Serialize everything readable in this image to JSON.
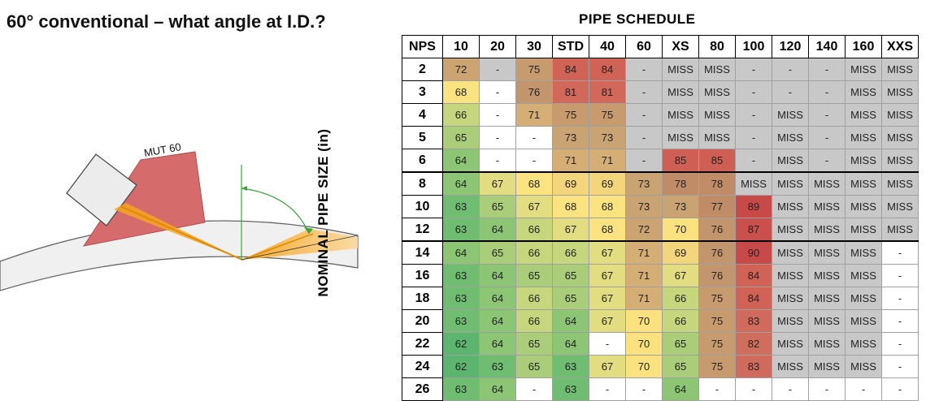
{
  "title": "60° conventional – what angle at I.D.?",
  "probe_label": "MUT 60",
  "schedule_title": "PIPE SCHEDULE",
  "y_axis_label": "NOMINAL PIPE SIZE (in)",
  "corner_header": "NPS",
  "columns": [
    "10",
    "20",
    "30",
    "STD",
    "40",
    "60",
    "XS",
    "80",
    "100",
    "120",
    "140",
    "160",
    "XXS"
  ],
  "rows": [
    {
      "nps": "2",
      "cells": [
        "72",
        "-",
        "75",
        "84",
        "84",
        "-",
        "MISS",
        "MISS",
        "-",
        "-",
        "-",
        "MISS",
        "MISS"
      ]
    },
    {
      "nps": "3",
      "cells": [
        "68",
        "-",
        "76",
        "81",
        "81",
        "-",
        "MISS",
        "MISS",
        "-",
        "-",
        "-",
        "MISS",
        "MISS"
      ]
    },
    {
      "nps": "4",
      "cells": [
        "66",
        "-",
        "71",
        "75",
        "75",
        "-",
        "MISS",
        "MISS",
        "-",
        "MISS",
        "-",
        "MISS",
        "MISS"
      ]
    },
    {
      "nps": "5",
      "cells": [
        "65",
        "-",
        "-",
        "73",
        "73",
        "-",
        "MISS",
        "MISS",
        "-",
        "MISS",
        "-",
        "MISS",
        "MISS"
      ]
    },
    {
      "nps": "6",
      "cells": [
        "64",
        "-",
        "-",
        "71",
        "71",
        "-",
        "85",
        "85",
        "-",
        "MISS",
        "-",
        "MISS",
        "MISS"
      ]
    },
    {
      "nps": "8",
      "cells": [
        "64",
        "67",
        "68",
        "69",
        "69",
        "73",
        "78",
        "78",
        "MISS",
        "MISS",
        "MISS",
        "MISS",
        "MISS"
      ]
    },
    {
      "nps": "10",
      "cells": [
        "63",
        "65",
        "67",
        "68",
        "68",
        "73",
        "73",
        "77",
        "89",
        "MISS",
        "MISS",
        "MISS",
        "MISS"
      ]
    },
    {
      "nps": "12",
      "cells": [
        "63",
        "64",
        "66",
        "67",
        "68",
        "72",
        "70",
        "76",
        "87",
        "MISS",
        "MISS",
        "MISS",
        "MISS"
      ]
    },
    {
      "nps": "14",
      "cells": [
        "64",
        "65",
        "66",
        "66",
        "67",
        "71",
        "69",
        "76",
        "90",
        "MISS",
        "MISS",
        "MISS",
        "-"
      ]
    },
    {
      "nps": "16",
      "cells": [
        "63",
        "64",
        "65",
        "65",
        "67",
        "71",
        "67",
        "76",
        "84",
        "MISS",
        "MISS",
        "MISS",
        "-"
      ]
    },
    {
      "nps": "18",
      "cells": [
        "63",
        "64",
        "66",
        "65",
        "67",
        "71",
        "66",
        "75",
        "84",
        "MISS",
        "MISS",
        "MISS",
        "-"
      ]
    },
    {
      "nps": "20",
      "cells": [
        "63",
        "64",
        "66",
        "64",
        "67",
        "70",
        "66",
        "75",
        "83",
        "MISS",
        "MISS",
        "MISS",
        "-"
      ]
    },
    {
      "nps": "22",
      "cells": [
        "62",
        "64",
        "65",
        "64",
        "-",
        "70",
        "65",
        "75",
        "82",
        "MISS",
        "MISS",
        "MISS",
        "-"
      ]
    },
    {
      "nps": "24",
      "cells": [
        "62",
        "63",
        "65",
        "63",
        "67",
        "70",
        "65",
        "75",
        "83",
        "MISS",
        "MISS",
        "MISS",
        "-"
      ]
    },
    {
      "nps": "26",
      "cells": [
        "63",
        "64",
        "-",
        "63",
        "-",
        "-",
        "64",
        "-",
        "-",
        "-",
        "-",
        "-",
        "-"
      ]
    }
  ],
  "colors": {
    "miss_gray": "#c8c8c8",
    "blank": "#ffffff",
    "scale": {
      "62": "#5cb56e",
      "63": "#6fbd71",
      "64": "#8cc675",
      "65": "#a9cd78",
      "66": "#c5d67c",
      "67": "#e2dd80",
      "68": "#fbe37f",
      "69": "#f3d57b",
      "70": "#fbe27e",
      "71": "#d4ae74",
      "72": "#cca471",
      "73": "#c9a372",
      "75": "#c89b6f",
      "76": "#c2956c",
      "77": "#c08c68",
      "78": "#c08c68",
      "81": "#d1685a",
      "82": "#cf6e5d",
      "83": "#cf6a5c",
      "84": "#d06355",
      "85": "#cf5f55",
      "87": "#c9504c",
      "89": "#c84a48",
      "90": "#c84a48"
    }
  }
}
